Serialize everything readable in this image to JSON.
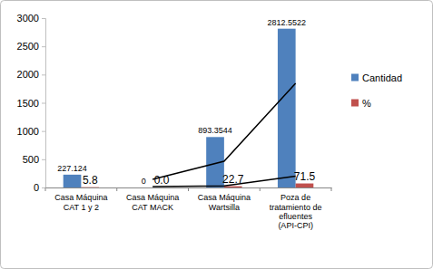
{
  "chart_data": {
    "type": "bar",
    "categories": [
      "Casa Máquina CAT 1 y 2",
      "Casa Máquina CAT MACK",
      "Casa Máquina Wartsilla",
      "Poza de tratamiento de efluentes (API-CPI)"
    ],
    "series": [
      {
        "name": "Cantidad",
        "color": "#4F81BD",
        "values": [
          227.124,
          0,
          893.3544,
          2812.5522
        ]
      },
      {
        "name": "%",
        "color": "#C0504D",
        "values": [
          5.8,
          0,
          22.7,
          71.5
        ],
        "value_labels": [
          "5.8",
          "0.0",
          "22.7",
          "71.5"
        ]
      },
      {
        "type": "line",
        "color": "#000000",
        "values": [
          null,
          145,
          465,
          1845
        ]
      },
      {
        "type": "line",
        "color": "#000000",
        "values": [
          null,
          15,
          30,
          200
        ]
      }
    ],
    "ylim": [
      0,
      3000
    ],
    "yticks": [
      0,
      500,
      1000,
      1500,
      2000,
      2500,
      3000
    ],
    "grid": false,
    "legend": "right",
    "data_labels": true
  }
}
